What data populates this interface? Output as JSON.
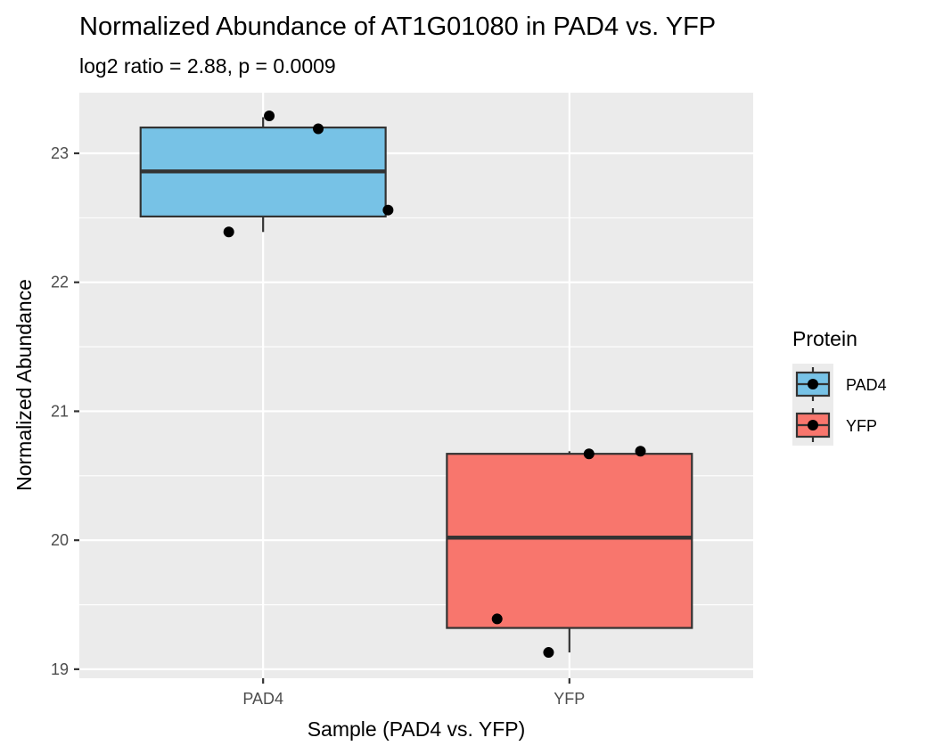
{
  "chart_data": {
    "type": "box",
    "title": "Normalized Abundance of AT1G01080 in PAD4 vs. YFP",
    "subtitle": "log2 ratio = 2.88, p = 0.0009",
    "xlabel": "Sample (PAD4 vs. YFP)",
    "ylabel": "Normalized Abundance",
    "categories": [
      "PAD4",
      "YFP"
    ],
    "ylim": [
      18.93,
      23.47
    ],
    "y_ticks": [
      19,
      20,
      21,
      22,
      23
    ],
    "y_tick_labels": [
      "19",
      "20",
      "21",
      "22",
      "23"
    ],
    "grid": true,
    "legend": {
      "title": "Protein",
      "position": "right",
      "entries": [
        {
          "label": "PAD4",
          "color": "#77C2E6"
        },
        {
          "label": "YFP",
          "color": "#F8766D"
        }
      ]
    },
    "series": [
      {
        "name": "PAD4",
        "color": "#77C2E6",
        "box": {
          "min": 22.39,
          "q1": 22.51,
          "median": 22.86,
          "q3": 23.2,
          "max": 23.28
        },
        "points": [
          23.29,
          23.19,
          22.39,
          22.56
        ]
      },
      {
        "name": "YFP",
        "color": "#F8766D",
        "box": {
          "min": 19.13,
          "q1": 19.32,
          "median": 20.02,
          "q3": 20.67,
          "max": 20.69
        },
        "points": [
          20.67,
          20.69,
          19.39,
          19.13
        ]
      }
    ]
  }
}
